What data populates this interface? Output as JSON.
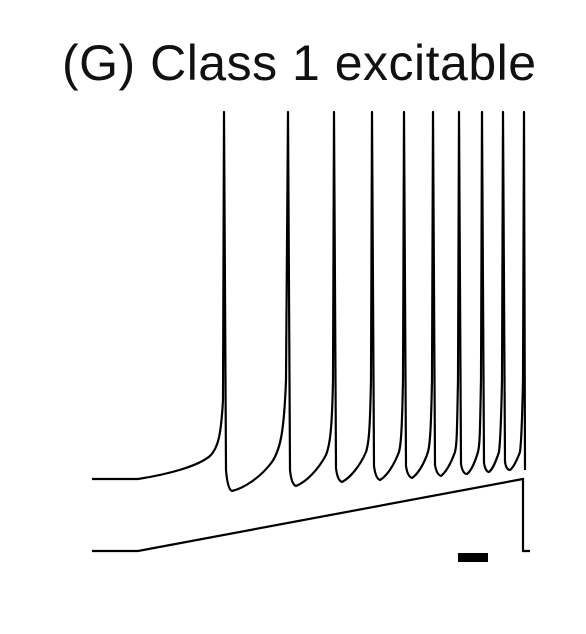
{
  "panel": {
    "title": "(G) Class 1 excitable"
  },
  "colors": {
    "trace": "#000000",
    "background": "#ffffff",
    "text": "#111111"
  }
}
